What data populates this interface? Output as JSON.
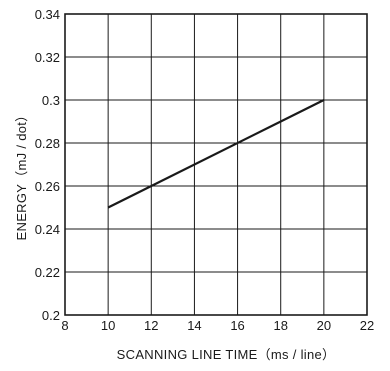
{
  "chart_data": {
    "type": "line",
    "title": "",
    "xlabel": "SCANNING  LINE  TIME（ms / line）",
    "ylabel": "ENERGY（mJ / dot）",
    "xlim": [
      8,
      22
    ],
    "ylim": [
      0.2,
      0.34
    ],
    "xticks": [
      "8",
      "10",
      "12",
      "14",
      "16",
      "18",
      "20",
      "22"
    ],
    "yticks": [
      "0.2",
      "0.22",
      "0.24",
      "0.26",
      "0.28",
      "0.3",
      "0.32",
      "0.34"
    ],
    "grid": true,
    "series": [
      {
        "x": [
          10,
          20
        ],
        "y": [
          0.25,
          0.3
        ]
      }
    ]
  }
}
